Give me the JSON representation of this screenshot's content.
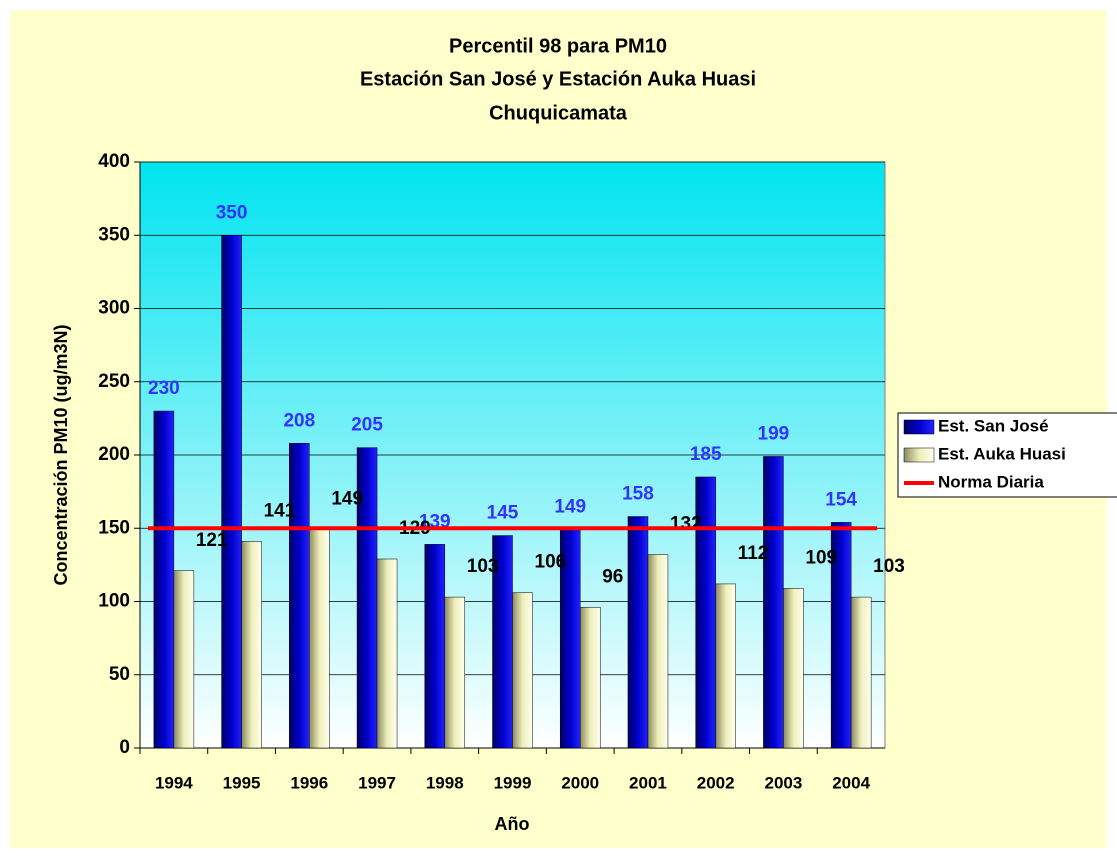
{
  "chart_data": {
    "type": "bar",
    "title": [
      "Percentil 98 para PM10",
      "Estación San José y Estación Auka Huasi",
      "Chuquicamata"
    ],
    "x_label": "Año",
    "y_label": "Concentración PM10 (ug/m3N)",
    "categories": [
      "1994",
      "1995",
      "1996",
      "1997",
      "1998",
      "1999",
      "2000",
      "2001",
      "2002",
      "2003",
      "2004"
    ],
    "series": [
      {
        "name": "Est. San José",
        "type": "bar",
        "color": "#0000cc",
        "label_color": "#3333ff",
        "values": [
          230,
          350,
          208,
          205,
          139,
          145,
          149,
          158,
          185,
          199,
          154
        ]
      },
      {
        "name": "Est. Auka Huasi",
        "type": "bar",
        "color": "#eeeebb",
        "label_color": "#000000",
        "values": [
          121,
          141,
          149,
          129,
          103,
          106,
          96,
          132,
          112,
          109,
          103
        ]
      },
      {
        "name": "Norma Diaria",
        "type": "line",
        "color": "#ff0000",
        "values": [
          150,
          150,
          150,
          150,
          150,
          150,
          150,
          150,
          150,
          150,
          150
        ]
      }
    ],
    "ylim": [
      0,
      400
    ],
    "yticks": [
      0,
      50,
      100,
      150,
      200,
      250,
      300,
      350,
      400
    ],
    "grid": true,
    "legend": "right"
  }
}
